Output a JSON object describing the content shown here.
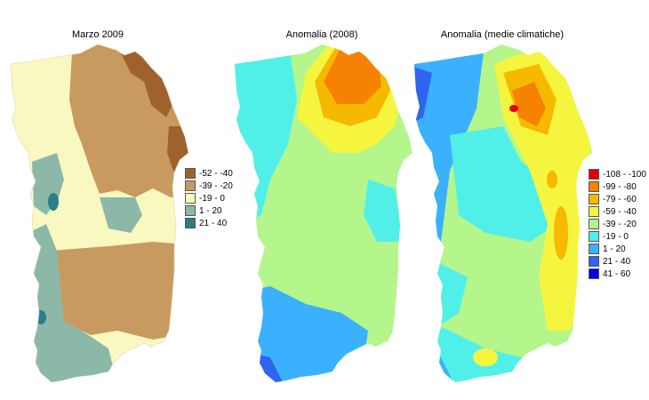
{
  "maps": [
    {
      "title": "Marzo 2009"
    },
    {
      "title": "Anomalia (2008)"
    },
    {
      "title": "Anomalia (medie climatiche)"
    }
  ],
  "legend_precip": [
    {
      "label": "-52 - -40",
      "color": "#a0622d"
    },
    {
      "label": "-39 - -20",
      "color": "#c89a60"
    },
    {
      "label": "-19 - 0",
      "color": "#f8f8c0"
    },
    {
      "label": "1 - 20",
      "color": "#8cb8a8"
    },
    {
      "label": "21 - 40",
      "color": "#2a7f88"
    }
  ],
  "legend_anomaly": [
    {
      "label": "-108 - -100",
      "color": "#e60000"
    },
    {
      "label": "-99 - -80",
      "color": "#f58200"
    },
    {
      "label": "-79 - -60",
      "color": "#f7b800"
    },
    {
      "label": "-59 - -40",
      "color": "#f5f540"
    },
    {
      "label": "-39 - -20",
      "color": "#b4f58c"
    },
    {
      "label": "-19 - 0",
      "color": "#50f0e8"
    },
    {
      "label": "1 - 20",
      "color": "#3ab0ff"
    },
    {
      "label": "21 - 40",
      "color": "#2e64f0"
    },
    {
      "label": "41 - 60",
      "color": "#0000e0"
    }
  ]
}
